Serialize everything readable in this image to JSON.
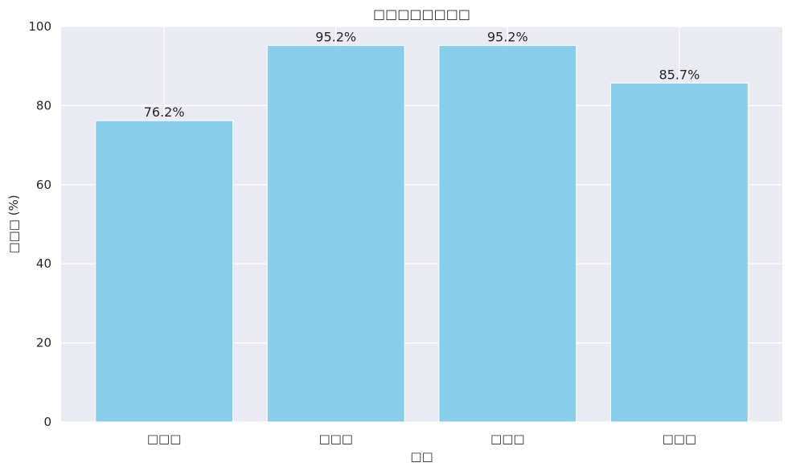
{
  "chart_data": {
    "type": "bar",
    "title": "□□□□□□□□",
    "xlabel": "□□",
    "ylabel": "□□□ (%)",
    "categories": [
      "□□□",
      "□□□",
      "□□□",
      "□□□"
    ],
    "values": [
      76.2,
      95.2,
      95.2,
      85.7
    ],
    "value_labels": [
      "76.2%",
      "95.2%",
      "95.2%",
      "85.7%"
    ],
    "ylim": [
      0,
      100
    ],
    "yticks": [
      0,
      20,
      40,
      60,
      80,
      100
    ],
    "ytick_labels": [
      "0",
      "20",
      "40",
      "60",
      "80",
      "100"
    ],
    "grid": true,
    "colors": {
      "bar": "#87CEEB",
      "plot_background": "#EAEAF2",
      "grid": "#FFFFFF",
      "text": "#262626"
    }
  }
}
